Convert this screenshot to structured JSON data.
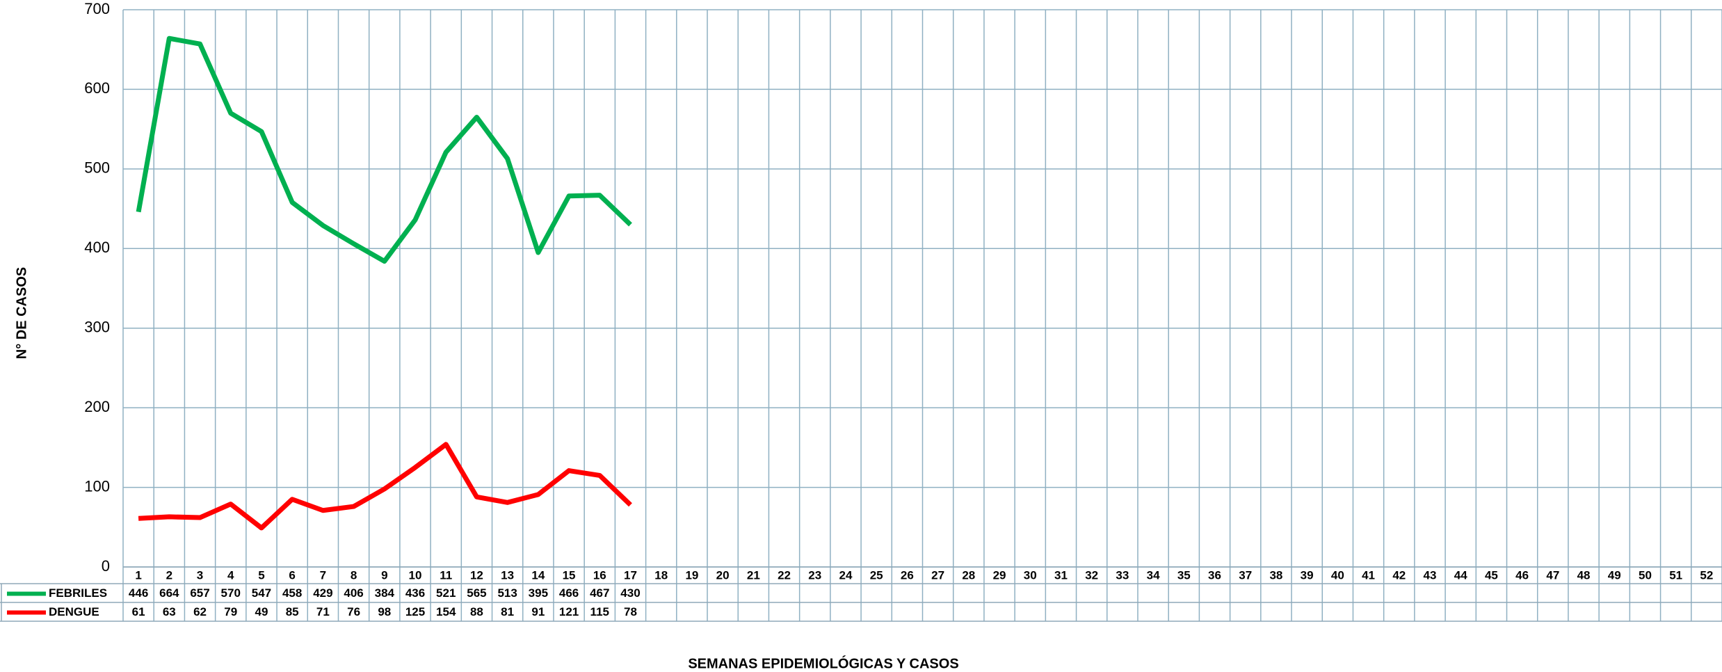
{
  "chart_data": {
    "type": "line",
    "ylabel": "N° DE CASOS",
    "xlabel": "SEMANAS  EPIDEMIOLÓGICAS  Y CASOS",
    "categories": [
      "1",
      "2",
      "3",
      "4",
      "5",
      "6",
      "7",
      "8",
      "9",
      "10",
      "11",
      "12",
      "13",
      "14",
      "15",
      "16",
      "17",
      "18",
      "19",
      "20",
      "21",
      "22",
      "23",
      "24",
      "25",
      "26",
      "27",
      "28",
      "29",
      "30",
      "31",
      "32",
      "33",
      "34",
      "35",
      "36",
      "37",
      "38",
      "39",
      "40",
      "41",
      "42",
      "43",
      "44",
      "45",
      "46",
      "47",
      "48",
      "49",
      "50",
      "51",
      "52"
    ],
    "series": [
      {
        "name": "FEBRILES",
        "color": "#00b050",
        "values": [
          446,
          664,
          657,
          570,
          547,
          458,
          429,
          406,
          384,
          436,
          521,
          565,
          513,
          395,
          466,
          467,
          430,
          null,
          null,
          null,
          null,
          null,
          null,
          null,
          null,
          null,
          null,
          null,
          null,
          null,
          null,
          null,
          null,
          null,
          null,
          null,
          null,
          null,
          null,
          null,
          null,
          null,
          null,
          null,
          null,
          null,
          null,
          null,
          null,
          null,
          null,
          null
        ]
      },
      {
        "name": "DENGUE",
        "color": "#ff0000",
        "values": [
          61,
          63,
          62,
          79,
          49,
          85,
          71,
          76,
          98,
          125,
          154,
          88,
          81,
          91,
          121,
          115,
          78,
          null,
          null,
          null,
          null,
          null,
          null,
          null,
          null,
          null,
          null,
          null,
          null,
          null,
          null,
          null,
          null,
          null,
          null,
          null,
          null,
          null,
          null,
          null,
          null,
          null,
          null,
          null,
          null,
          null,
          null,
          null,
          null,
          null,
          null,
          null
        ]
      }
    ],
    "ylim": [
      0,
      700
    ],
    "yticks": [
      0,
      100,
      200,
      300,
      400,
      500,
      600,
      700
    ],
    "grid": true
  }
}
